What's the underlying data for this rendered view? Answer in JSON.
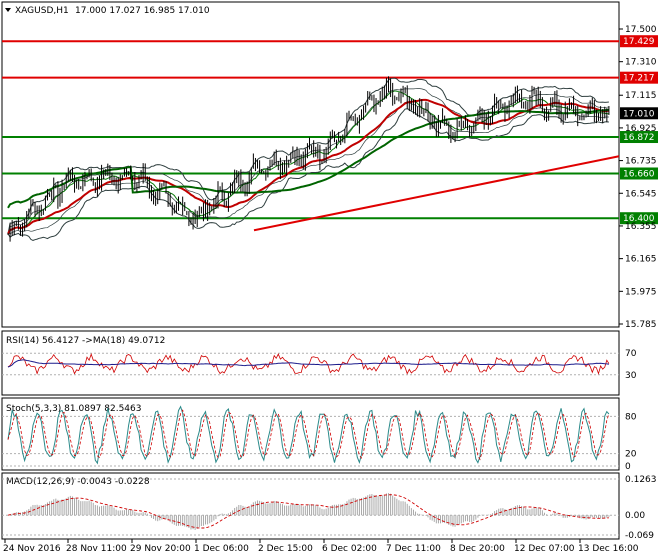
{
  "window": {
    "title_symbol": "XAGUSD,H1",
    "ohlc": "17.000 17.027 16.985 17.010"
  },
  "colors": {
    "grid": "#c8c8c8",
    "candle": "#000000",
    "red_line": "#e00000",
    "green_line": "#008000",
    "bollinger": "#2f3f3f",
    "ma_fast": "#0a7a0a",
    "ma_slow": "#c00000",
    "ma_long": "#006400",
    "rsi": "#1c1c8c",
    "rsi_ma": "#d00000",
    "stoch_main": "#2a8a8a",
    "stoch_signal": "#d00000",
    "macd_hist": "#a8a8a8",
    "macd_signal": "#d00000",
    "label_red_bg": "#e00000",
    "label_green_bg": "#008000",
    "label_black_bg": "#000000"
  },
  "price_axis": {
    "ticks": [
      "17.500",
      "17.310",
      "17.115",
      "16.925",
      "16.735",
      "16.545",
      "16.355",
      "16.165",
      "15.975",
      "15.785"
    ],
    "min": 15.785,
    "max": 17.5
  },
  "levels": [
    {
      "label": "17.429",
      "value": 17.429,
      "kind": "red"
    },
    {
      "label": "17.217",
      "value": 17.217,
      "kind": "red"
    },
    {
      "label": "16.872",
      "value": 16.872,
      "kind": "green"
    },
    {
      "label": "16.660",
      "value": 16.66,
      "kind": "green"
    },
    {
      "label": "16.400",
      "value": 16.4,
      "kind": "green"
    }
  ],
  "current_price": {
    "label": "17.010",
    "value": 17.01
  },
  "x_axis": {
    "labels": [
      "24 Nov 2016",
      "28 Nov 11:00",
      "29 Nov 20:00",
      "1 Dec 06:00",
      "2 Dec 15:00",
      "6 Dec 02:00",
      "7 Dec 11:00",
      "8 Dec 20:00",
      "12 Dec 07:00",
      "13 Dec 16:00"
    ]
  },
  "rsi": {
    "title": "RSI(14) 56.4127 ->MA(18) 49.0712",
    "ticks": [
      "70",
      "30"
    ],
    "min": 0,
    "max": 100
  },
  "stoch": {
    "title": "Stoch(5,3,3) 81.0897 82.5463",
    "ticks": [
      "80",
      "20",
      "0"
    ],
    "min": 0,
    "max": 100
  },
  "macd": {
    "title": "MACD(12,26,9) -0.0043 -0.0228",
    "ticks": [
      "0.1263",
      "0.00",
      "-0.069"
    ],
    "min": -0.069,
    "max": 0.1263
  },
  "chart_data": {
    "type": "candlestick",
    "symbol": "XAGUSD",
    "timeframe": "H1",
    "ylim": [
      15.785,
      17.5
    ],
    "key_closes": [
      {
        "x": "24 Nov 2016",
        "close": 16.3
      },
      {
        "x": "28 Nov 11:00",
        "close": 16.62
      },
      {
        "x": "29 Nov 20:00",
        "close": 16.65
      },
      {
        "x": "1 Dec 06:00",
        "close": 16.4
      },
      {
        "x": "2 Dec 15:00",
        "close": 16.7
      },
      {
        "x": "6 Dec 02:00",
        "close": 16.8
      },
      {
        "x": "7 Dec 11:00",
        "close": 17.15
      },
      {
        "x": "8 Dec 20:00",
        "close": 16.9
      },
      {
        "x": "12 Dec 07:00",
        "close": 17.1
      },
      {
        "x": "13 Dec 16:00",
        "close": 17.01
      }
    ],
    "trendlines": [
      {
        "name": "support-trendline",
        "from": {
          "x": "2 Dec 15:00",
          "y": 16.33
        },
        "to": {
          "x": "13 Dec 16:00",
          "y": 16.76
        }
      }
    ]
  }
}
